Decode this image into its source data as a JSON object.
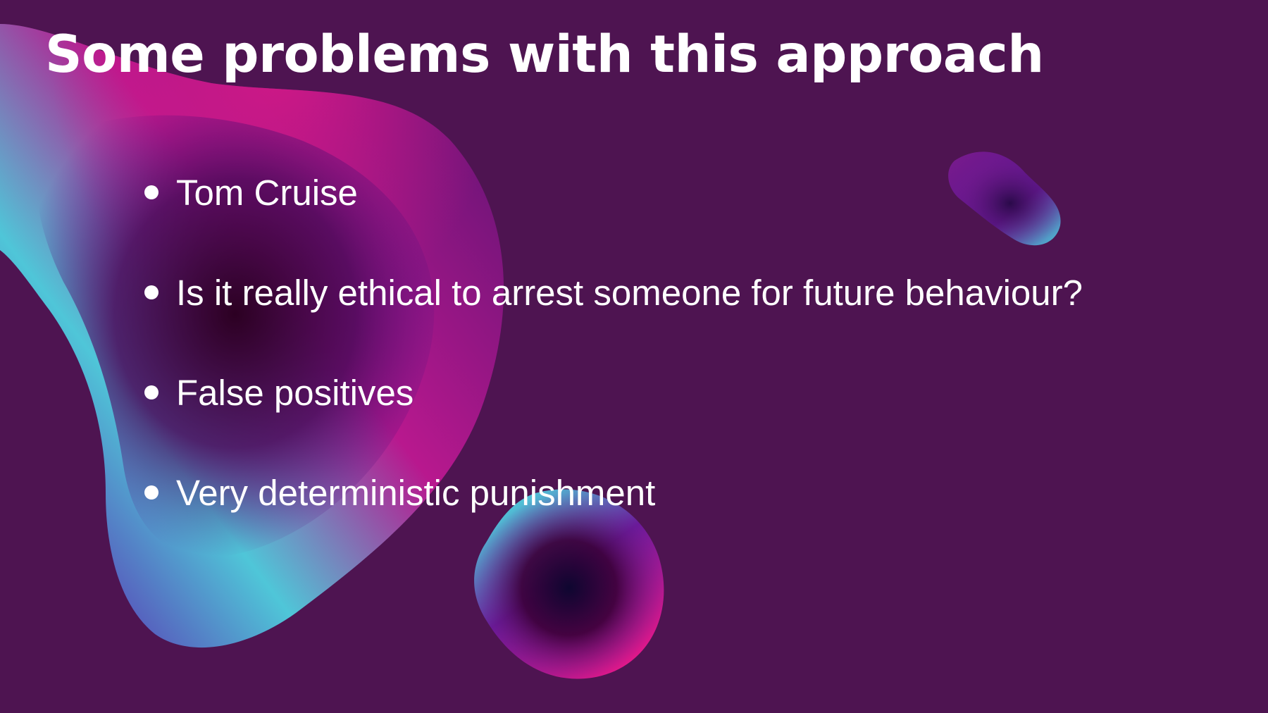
{
  "slide": {
    "title": "Some problems with this approach",
    "bullets": [
      "Tom Cruise",
      "Is it really ethical to arrest someone for future behaviour?",
      "False positives",
      "Very deterministic punishment"
    ]
  },
  "colors": {
    "background": "#4e1451",
    "text": "#ffffff",
    "blob_pink": "#c8157f",
    "blob_cyan": "#4fc6d8",
    "blob_violet": "#5a138a",
    "blob_dark": "#2a0028"
  }
}
